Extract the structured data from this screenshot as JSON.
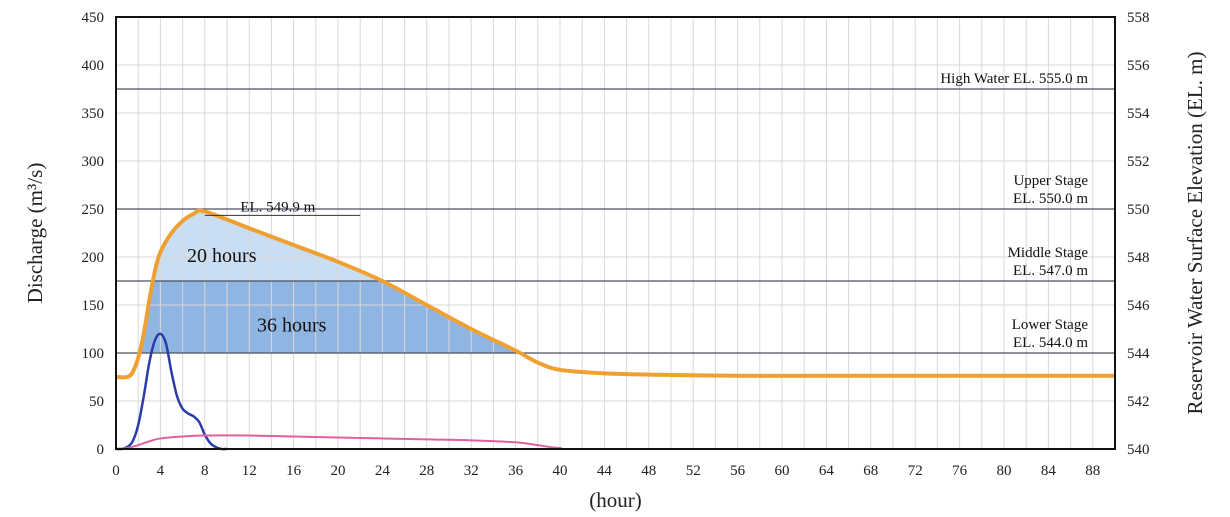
{
  "chart_data": {
    "type": "line",
    "xlabel": "(hour)",
    "ylabel_left": "Discharge (m³/s)",
    "ylabel_right": "Reservoir Water Surface Elevation (EL. m)",
    "xlim": [
      0,
      90
    ],
    "ylim_left": [
      0,
      450
    ],
    "ylim_right": [
      540,
      558
    ],
    "x_ticks": [
      "0",
      "4",
      "8",
      "12",
      "16",
      "20",
      "24",
      "28",
      "32",
      "36",
      "40",
      "44",
      "48",
      "52",
      "56",
      "60",
      "64",
      "68",
      "72",
      "76",
      "80",
      "84",
      "88"
    ],
    "y_ticks_left": [
      "0",
      "50",
      "100",
      "150",
      "200",
      "250",
      "300",
      "350",
      "400",
      "450"
    ],
    "y_ticks_right": [
      "540",
      "542",
      "544",
      "546",
      "548",
      "550",
      "552",
      "554",
      "556",
      "558"
    ],
    "grid": true,
    "series": [
      {
        "axis": "right",
        "color": "#F0A030",
        "x": [
          0,
          1,
          1.5,
          2,
          2.5,
          3,
          3.5,
          4,
          5,
          6,
          7,
          8,
          12,
          16,
          20,
          24,
          28,
          32,
          36,
          38,
          40,
          44,
          48,
          56,
          64,
          72,
          80,
          88,
          90
        ],
        "y": [
          543.0,
          543.0,
          543.2,
          543.8,
          544.8,
          546.2,
          547.4,
          548.2,
          549.0,
          549.5,
          549.8,
          549.9,
          549.2,
          548.5,
          547.8,
          547.0,
          546.0,
          545.0,
          544.1,
          543.6,
          543.3,
          543.15,
          543.1,
          543.05,
          543.05,
          543.05,
          543.05,
          543.05,
          543.05
        ]
      },
      {
        "axis": "left",
        "color": "#2B3BA8",
        "x": [
          0,
          0.5,
          1,
          1.5,
          2,
          2.5,
          3,
          3.5,
          4,
          4.5,
          5,
          5.5,
          6,
          6.5,
          7,
          7.5,
          8,
          8.5,
          9,
          9.5,
          10
        ],
        "y": [
          0,
          0,
          2,
          8,
          25,
          55,
          90,
          113,
          120,
          110,
          80,
          55,
          42,
          37,
          34,
          28,
          15,
          6,
          2,
          0,
          0
        ]
      },
      {
        "axis": "left",
        "color": "#E060A0",
        "x": [
          0,
          1,
          2,
          3,
          4,
          6,
          8,
          12,
          16,
          20,
          24,
          28,
          32,
          36,
          38,
          40,
          44,
          90
        ],
        "y": [
          0,
          1,
          4,
          8,
          11,
          13,
          14,
          14,
          13,
          12,
          11,
          10,
          9,
          7,
          4,
          1,
          0,
          0
        ]
      }
    ],
    "reference_lines": [
      {
        "elevation": 555.0,
        "label": "High Water EL. 555.0 m"
      },
      {
        "elevation": 550.0,
        "label_line1": "Upper Stage",
        "label_line2": "EL. 550.0 m"
      },
      {
        "elevation": 547.0,
        "label_line1": "Middle Stage",
        "label_line2": "EL. 547.0 m"
      },
      {
        "elevation": 544.0,
        "label_line1": "Lower Stage",
        "label_line2": "EL. 544.0 m"
      }
    ],
    "peak_annotation": {
      "label": "EL. 549.9 m",
      "elevation": 549.9
    },
    "annotations": [
      "20 hours",
      "36 hours"
    ],
    "colors": {
      "fill_upper": "#C9DDF3",
      "fill_lower": "#8FB6E2",
      "grid": "#d8d8d8"
    }
  }
}
